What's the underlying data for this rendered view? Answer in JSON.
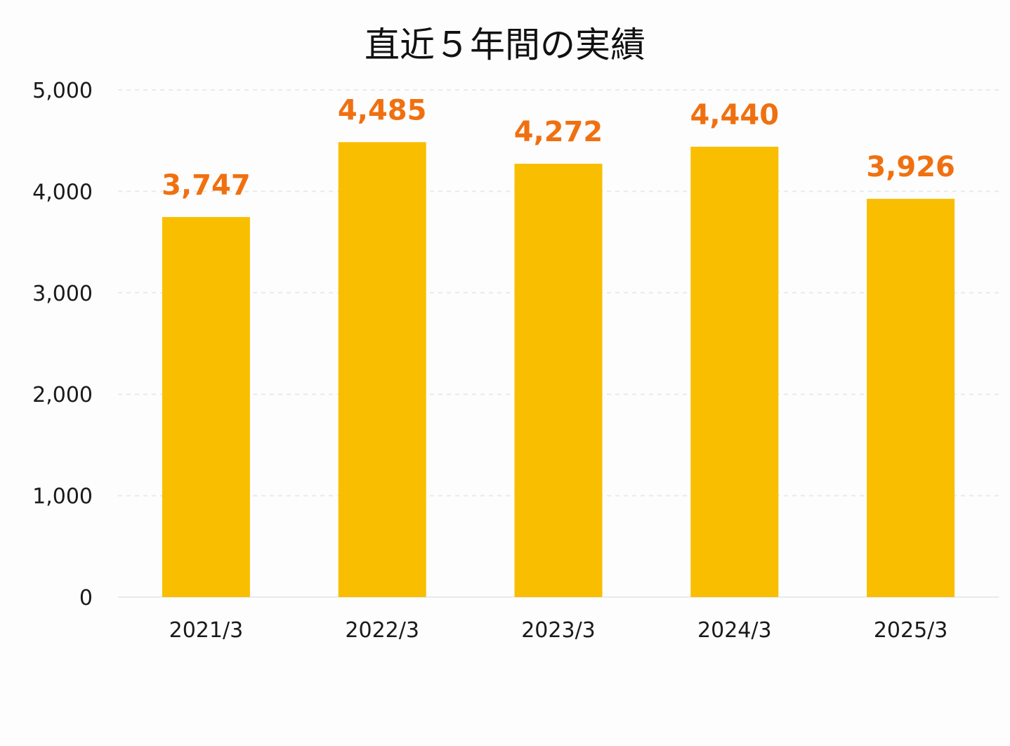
{
  "chart_data": {
    "type": "bar",
    "title": "直近５年間の実績",
    "categories": [
      "2021/3",
      "2022/3",
      "2023/3",
      "2024/3",
      "2025/3"
    ],
    "values": [
      3747,
      4485,
      4272,
      4440,
      3926
    ],
    "data_labels": [
      "3,747",
      "4,485",
      "4,272",
      "4,440",
      "3,926"
    ],
    "y_ticks": [
      0,
      1000,
      2000,
      3000,
      4000,
      5000
    ],
    "y_tick_labels": [
      "0",
      "1,000",
      "2,000",
      "3,000",
      "4,000",
      "5,000"
    ],
    "ylim": [
      0,
      5000
    ],
    "xlabel": "",
    "ylabel": "",
    "grid": true,
    "legend": "none",
    "bar_color": "#f9be00",
    "label_color": "#f07010",
    "grid_color": "#e6ebef"
  }
}
